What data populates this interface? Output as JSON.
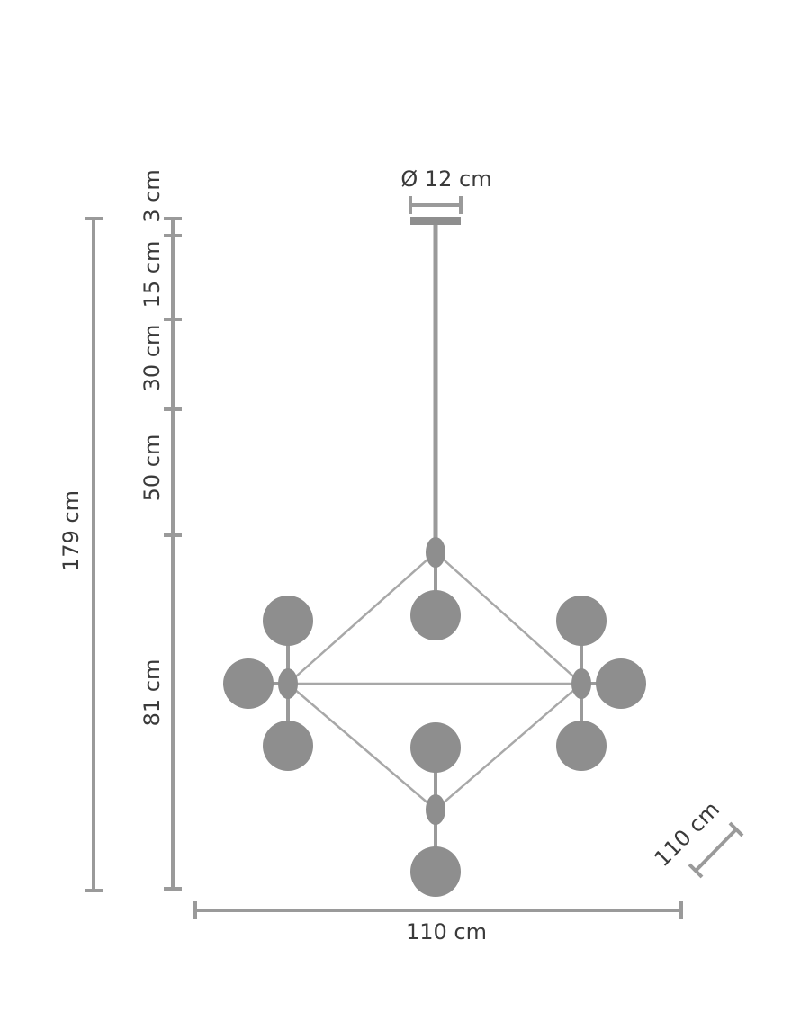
{
  "dimensions": {
    "diameter": "Ø 12 cm",
    "overall_height": "179 cm",
    "segments": [
      "3 cm",
      "15 cm",
      "30 cm",
      "50 cm",
      "81 cm"
    ],
    "width": "110 cm",
    "depth": "110 cm"
  }
}
